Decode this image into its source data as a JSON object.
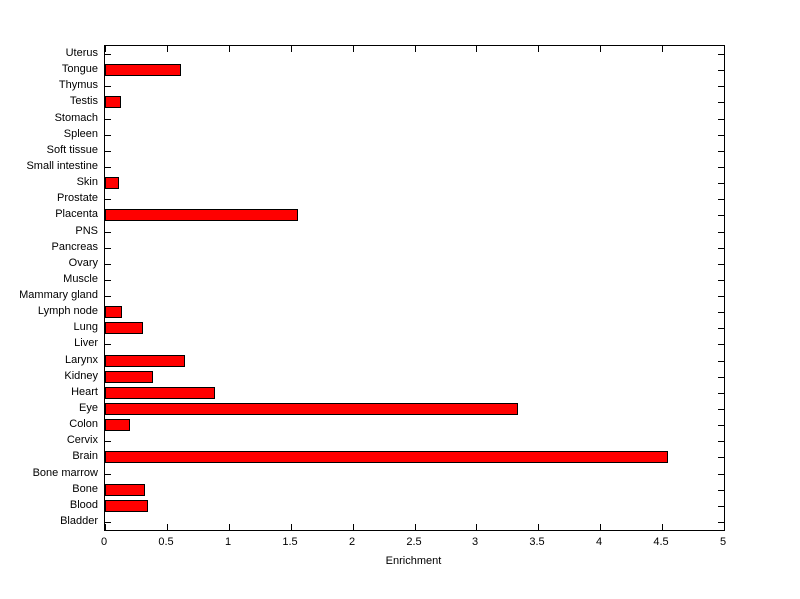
{
  "figure": {
    "background": "#ffffff"
  },
  "chart_data": {
    "type": "bar",
    "orientation": "horizontal",
    "title": "",
    "xlabel": "Enrichment",
    "ylabel": "",
    "xlim": [
      0,
      5
    ],
    "xticks": [
      0,
      0.5,
      1,
      1.5,
      2,
      2.5,
      3,
      3.5,
      4,
      4.5,
      5
    ],
    "xtick_labels": [
      "0",
      "0.5",
      "1",
      "1.5",
      "2",
      "2.5",
      "3",
      "3.5",
      "4",
      "4.5",
      "5"
    ],
    "grid": false,
    "legend": null,
    "bar_color": "#ff0000",
    "bar_edge_color": "#000000",
    "axis_color": "#000000",
    "categories_top_to_bottom": [
      "Uterus",
      "Tongue",
      "Thymus",
      "Testis",
      "Stomach",
      "Spleen",
      "Soft tissue",
      "Small intestine",
      "Skin",
      "Prostate",
      "Placenta",
      "PNS",
      "Pancreas",
      "Ovary",
      "Muscle",
      "Mammary gland",
      "Lymph node",
      "Lung",
      "Liver",
      "Larynx",
      "Kidney",
      "Heart",
      "Eye",
      "Colon",
      "Cervix",
      "Brain",
      "Bone marrow",
      "Bone",
      "Blood",
      "Bladder"
    ],
    "values": [
      0,
      0.61,
      0,
      0.13,
      0,
      0,
      0,
      0,
      0.11,
      0,
      1.56,
      0,
      0,
      0,
      0,
      0,
      0.14,
      0.31,
      0,
      0.65,
      0.39,
      0.89,
      3.34,
      0.2,
      0,
      4.55,
      0,
      0.32,
      0.35,
      0
    ]
  }
}
